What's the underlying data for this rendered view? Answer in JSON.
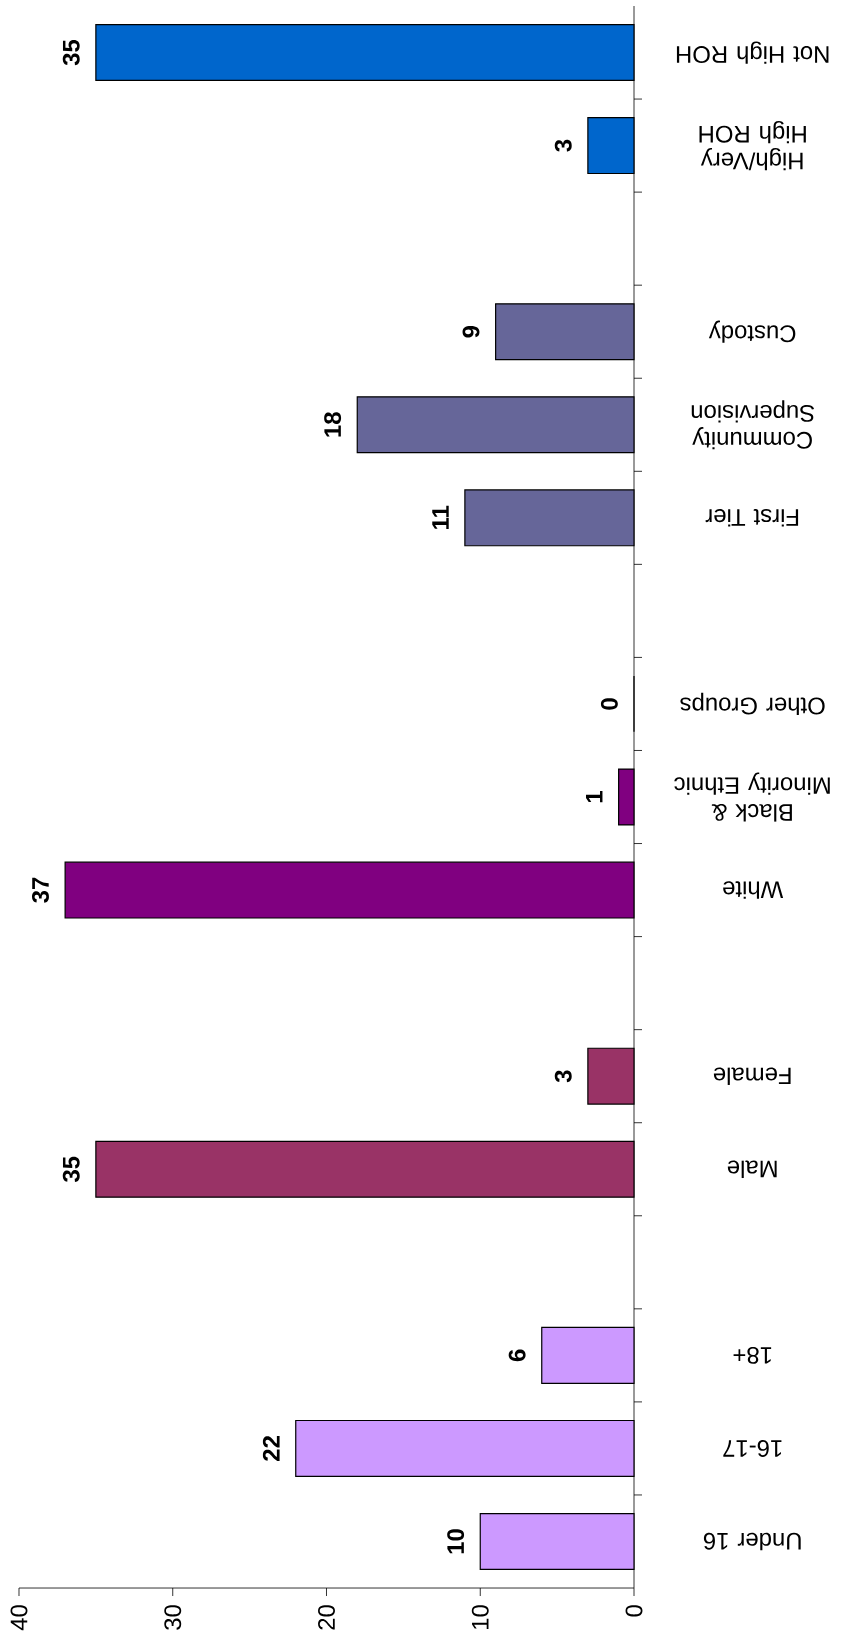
{
  "chart_data": {
    "type": "bar",
    "orientation": "horizontal",
    "categories": [
      "Not High ROH",
      "High/Very High ROH",
      null,
      "Custody",
      "Community Supervision",
      "First Tier",
      null,
      "Other Groups",
      "Black & Minority Ethnic",
      "White",
      null,
      "Female",
      "Male",
      null,
      "18+",
      "16-17",
      "Under 16"
    ],
    "values": [
      35,
      3,
      null,
      9,
      18,
      11,
      null,
      0,
      1,
      37,
      null,
      3,
      35,
      null,
      6,
      22,
      10
    ],
    "colors": [
      "#0066cc",
      "#0066cc",
      null,
      "#666699",
      "#666699",
      "#666699",
      null,
      "#800080",
      "#800080",
      "#800080",
      null,
      "#993366",
      "#993366",
      null,
      "#cc99ff",
      "#cc99ff",
      "#cc99ff"
    ],
    "xlim": [
      40,
      0
    ],
    "xticks": [
      0,
      10,
      20,
      30,
      40
    ],
    "data_labels": true
  }
}
